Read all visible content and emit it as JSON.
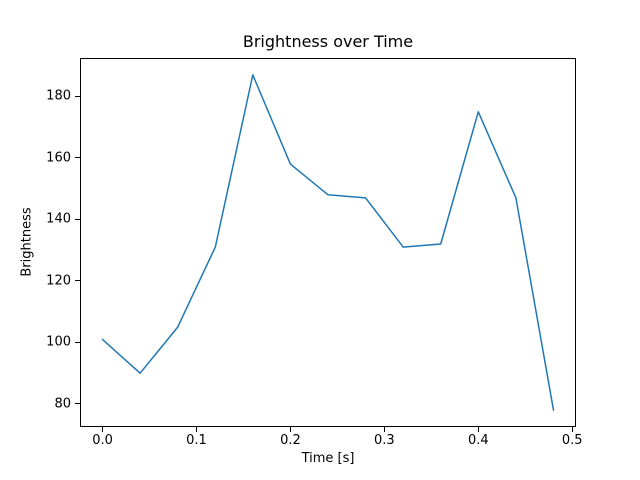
{
  "chart_data": {
    "type": "line",
    "title": "Brightness over Time",
    "xlabel": "Time [s]",
    "ylabel": "Brightness",
    "x": [
      0.0,
      0.04,
      0.08,
      0.12,
      0.16,
      0.2,
      0.24,
      0.28,
      0.32,
      0.36,
      0.4,
      0.44,
      0.48
    ],
    "y": [
      101,
      90,
      105,
      131,
      187,
      158,
      148,
      147,
      131,
      132,
      175,
      147,
      78
    ],
    "xlim": [
      -0.024,
      0.504
    ],
    "ylim": [
      72.5,
      192.5
    ],
    "xticks": {
      "values": [
        0.0,
        0.1,
        0.2,
        0.3,
        0.4,
        0.5
      ],
      "labels": [
        "0.0",
        "0.1",
        "0.2",
        "0.3",
        "0.4",
        "0.5"
      ]
    },
    "yticks": {
      "values": [
        80,
        100,
        120,
        140,
        160,
        180
      ],
      "labels": [
        "80",
        "100",
        "120",
        "140",
        "160",
        "180"
      ]
    },
    "line_color": "#1f77b4",
    "line_width": 1.5,
    "grid": false,
    "legend": null,
    "background": "#ffffff"
  }
}
